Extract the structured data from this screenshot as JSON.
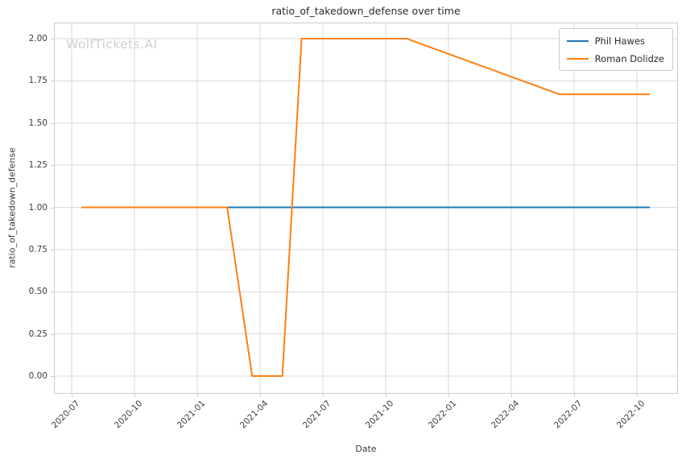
{
  "chart": {
    "watermark": "WolfTickets.AI",
    "colors": {
      "background": "#ffffff",
      "grid": "#d9d9d9",
      "spine": "#cccccc",
      "text": "#2b2b2b",
      "tick_text": "#3c3c3c",
      "watermark": "#cdd0d4"
    }
  },
  "chart_data": {
    "type": "line",
    "title": "ratio_of_takedown_defense over time",
    "xlabel": "Date",
    "ylabel": "ratio_of_takedown_defense",
    "grid": true,
    "legend_position": "upper right",
    "ylim": [
      -0.1,
      2.1
    ],
    "x_range": [
      "2020-07-15",
      "2022-10-20"
    ],
    "y_ticks": [
      {
        "value": 0.0,
        "label": "0.00"
      },
      {
        "value": 0.25,
        "label": "0.25"
      },
      {
        "value": 0.5,
        "label": "0.50"
      },
      {
        "value": 0.75,
        "label": "0.75"
      },
      {
        "value": 1.0,
        "label": "1.00"
      },
      {
        "value": 1.25,
        "label": "1.25"
      },
      {
        "value": 1.5,
        "label": "1.50"
      },
      {
        "value": 1.75,
        "label": "1.75"
      },
      {
        "value": 2.0,
        "label": "2.00"
      }
    ],
    "x_ticks": [
      "2020-07",
      "2020-10",
      "2021-01",
      "2021-04",
      "2021-07",
      "2021-10",
      "2022-01",
      "2022-04",
      "2022-07",
      "2022-10"
    ],
    "series": [
      {
        "name": "Phil Hawes",
        "color": "#1f77b4",
        "points": [
          [
            "2020-07-15",
            1.0
          ],
          [
            "2022-10-20",
            1.0
          ]
        ]
      },
      {
        "name": "Roman Dolidze",
        "color": "#ff7f0e",
        "points": [
          [
            "2020-07-15",
            1.0
          ],
          [
            "2021-02-14",
            1.0
          ],
          [
            "2021-03-20",
            0.0
          ],
          [
            "2021-05-03",
            0.0
          ],
          [
            "2021-05-31",
            2.0
          ],
          [
            "2021-11-01",
            2.0
          ],
          [
            "2022-06-10",
            1.67
          ],
          [
            "2022-10-20",
            1.67
          ]
        ]
      }
    ]
  }
}
